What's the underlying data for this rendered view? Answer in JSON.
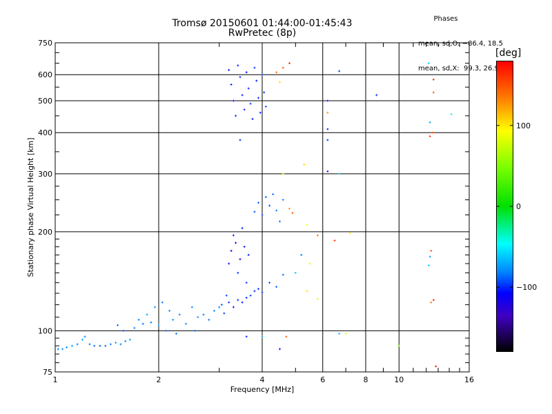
{
  "chart_data": {
    "type": "scatter",
    "title": "Tromsø 20150601 01:44:00-01:45:43",
    "subtitle": "RwPretec (8p)",
    "xlabel": "Frequency [MHz]",
    "ylabel": "Stationary phase Virtual Height [km]",
    "x_scale": "log",
    "y_scale": "log",
    "xlim": [
      1,
      16
    ],
    "ylim": [
      75,
      750
    ],
    "x_ticks": [
      1,
      2,
      4,
      6,
      8,
      10,
      16
    ],
    "x_tick_labels": [
      "1",
      "2",
      "4",
      "6",
      "8",
      "10",
      "16"
    ],
    "y_ticks": [
      75,
      100,
      200,
      300,
      400,
      500,
      600,
      750
    ],
    "y_tick_labels": [
      "75",
      "100",
      "200",
      "300",
      "400",
      "500",
      "600",
      "750"
    ],
    "grid": true,
    "colorbar": {
      "label": "[deg]",
      "ticks": [
        100,
        0,
        -100
      ],
      "tick_labels": [
        "100",
        "0",
        "−100"
      ],
      "range": [
        -180,
        180
      ]
    },
    "phases_header": "Phases",
    "stats_lines": [
      "mean, sd,O: −86.4, 18.5",
      "mean, sd,X:  99.3, 26.9"
    ],
    "points": [
      {
        "x": 1.02,
        "y": 88,
        "phase": -80
      },
      {
        "x": 1.05,
        "y": 88,
        "phase": -75
      },
      {
        "x": 1.08,
        "y": 89,
        "phase": -78
      },
      {
        "x": 1.12,
        "y": 90,
        "phase": -72
      },
      {
        "x": 1.16,
        "y": 91,
        "phase": -80
      },
      {
        "x": 1.2,
        "y": 94,
        "phase": -70
      },
      {
        "x": 1.22,
        "y": 96,
        "phase": -76
      },
      {
        "x": 1.26,
        "y": 91,
        "phase": -82
      },
      {
        "x": 1.3,
        "y": 90,
        "phase": -85
      },
      {
        "x": 1.35,
        "y": 90,
        "phase": -90
      },
      {
        "x": 1.4,
        "y": 90,
        "phase": -88
      },
      {
        "x": 1.45,
        "y": 91,
        "phase": -80
      },
      {
        "x": 1.5,
        "y": 92,
        "phase": -75
      },
      {
        "x": 1.55,
        "y": 91,
        "phase": -78
      },
      {
        "x": 1.6,
        "y": 93,
        "phase": -80
      },
      {
        "x": 1.52,
        "y": 104,
        "phase": -85
      },
      {
        "x": 1.58,
        "y": 100,
        "phase": -90
      },
      {
        "x": 1.65,
        "y": 94,
        "phase": -72
      },
      {
        "x": 1.7,
        "y": 102,
        "phase": -80
      },
      {
        "x": 1.75,
        "y": 108,
        "phase": -78
      },
      {
        "x": 1.8,
        "y": 105,
        "phase": -85
      },
      {
        "x": 1.85,
        "y": 112,
        "phase": -70
      },
      {
        "x": 1.9,
        "y": 106,
        "phase": -82
      },
      {
        "x": 1.95,
        "y": 118,
        "phase": -76
      },
      {
        "x": 2.0,
        "y": 104,
        "phase": -72
      },
      {
        "x": 2.05,
        "y": 122,
        "phase": -80
      },
      {
        "x": 2.1,
        "y": 100,
        "phase": -84
      },
      {
        "x": 2.15,
        "y": 115,
        "phase": -78
      },
      {
        "x": 2.2,
        "y": 108,
        "phase": -74
      },
      {
        "x": 2.25,
        "y": 98,
        "phase": -82
      },
      {
        "x": 2.3,
        "y": 112,
        "phase": -80
      },
      {
        "x": 2.4,
        "y": 105,
        "phase": -76
      },
      {
        "x": 2.5,
        "y": 118,
        "phase": -78
      },
      {
        "x": 2.55,
        "y": 100,
        "phase": -85
      },
      {
        "x": 2.6,
        "y": 110,
        "phase": -72
      },
      {
        "x": 2.7,
        "y": 112,
        "phase": -80
      },
      {
        "x": 2.8,
        "y": 108,
        "phase": -82
      },
      {
        "x": 2.9,
        "y": 115,
        "phase": -76
      },
      {
        "x": 3.0,
        "y": 118,
        "phase": -80
      },
      {
        "x": 3.05,
        "y": 120,
        "phase": -88
      },
      {
        "x": 3.1,
        "y": 113,
        "phase": -94
      },
      {
        "x": 3.15,
        "y": 128,
        "phase": -92
      },
      {
        "x": 3.2,
        "y": 122,
        "phase": -98
      },
      {
        "x": 3.3,
        "y": 118,
        "phase": -100
      },
      {
        "x": 3.4,
        "y": 124,
        "phase": -96
      },
      {
        "x": 3.5,
        "y": 122,
        "phase": -102
      },
      {
        "x": 3.6,
        "y": 126,
        "phase": -98
      },
      {
        "x": 3.7,
        "y": 128,
        "phase": -95
      },
      {
        "x": 3.8,
        "y": 132,
        "phase": -100
      },
      {
        "x": 3.9,
        "y": 134,
        "phase": -96
      },
      {
        "x": 4.0,
        "y": 131,
        "phase": -94
      },
      {
        "x": 4.2,
        "y": 140,
        "phase": -92
      },
      {
        "x": 4.4,
        "y": 136,
        "phase": -88
      },
      {
        "x": 4.6,
        "y": 148,
        "phase": -84
      },
      {
        "x": 3.2,
        "y": 160,
        "phase": -102
      },
      {
        "x": 3.25,
        "y": 175,
        "phase": -104
      },
      {
        "x": 3.3,
        "y": 195,
        "phase": -100
      },
      {
        "x": 3.35,
        "y": 185,
        "phase": -106
      },
      {
        "x": 3.4,
        "y": 150,
        "phase": -98
      },
      {
        "x": 3.45,
        "y": 165,
        "phase": -104
      },
      {
        "x": 3.5,
        "y": 205,
        "phase": -100
      },
      {
        "x": 3.55,
        "y": 180,
        "phase": -102
      },
      {
        "x": 3.6,
        "y": 140,
        "phase": -96
      },
      {
        "x": 3.65,
        "y": 170,
        "phase": -100
      },
      {
        "x": 3.8,
        "y": 230,
        "phase": -90
      },
      {
        "x": 3.9,
        "y": 245,
        "phase": -88
      },
      {
        "x": 4.0,
        "y": 225,
        "phase": -92
      },
      {
        "x": 4.1,
        "y": 255,
        "phase": -86
      },
      {
        "x": 4.2,
        "y": 240,
        "phase": -90
      },
      {
        "x": 4.3,
        "y": 260,
        "phase": -84
      },
      {
        "x": 4.4,
        "y": 232,
        "phase": -80
      },
      {
        "x": 4.5,
        "y": 215,
        "phase": -82
      },
      {
        "x": 4.6,
        "y": 250,
        "phase": -78
      },
      {
        "x": 4.8,
        "y": 235,
        "phase": 130
      },
      {
        "x": 4.9,
        "y": 228,
        "phase": 150
      },
      {
        "x": 3.2,
        "y": 620,
        "phase": -102
      },
      {
        "x": 3.25,
        "y": 560,
        "phase": -100
      },
      {
        "x": 3.3,
        "y": 500,
        "phase": -104
      },
      {
        "x": 3.35,
        "y": 450,
        "phase": -98
      },
      {
        "x": 3.4,
        "y": 640,
        "phase": -100
      },
      {
        "x": 3.45,
        "y": 590,
        "phase": -96
      },
      {
        "x": 3.5,
        "y": 520,
        "phase": -102
      },
      {
        "x": 3.55,
        "y": 470,
        "phase": -100
      },
      {
        "x": 3.6,
        "y": 610,
        "phase": -106
      },
      {
        "x": 3.65,
        "y": 545,
        "phase": -98
      },
      {
        "x": 3.7,
        "y": 490,
        "phase": -94
      },
      {
        "x": 3.75,
        "y": 440,
        "phase": -100
      },
      {
        "x": 3.8,
        "y": 630,
        "phase": -96
      },
      {
        "x": 3.85,
        "y": 575,
        "phase": -102
      },
      {
        "x": 3.9,
        "y": 510,
        "phase": -98
      },
      {
        "x": 3.95,
        "y": 460,
        "phase": -100
      },
      {
        "x": 4.0,
        "y": 600,
        "phase": -92
      },
      {
        "x": 4.05,
        "y": 530,
        "phase": -96
      },
      {
        "x": 4.1,
        "y": 480,
        "phase": -90
      },
      {
        "x": 3.45,
        "y": 380,
        "phase": -98
      },
      {
        "x": 4.4,
        "y": 610,
        "phase": 140
      },
      {
        "x": 4.6,
        "y": 630,
        "phase": 150
      },
      {
        "x": 4.8,
        "y": 650,
        "phase": 170
      },
      {
        "x": 4.5,
        "y": 570,
        "phase": 110
      },
      {
        "x": 6.2,
        "y": 500,
        "phase": -104
      },
      {
        "x": 6.2,
        "y": 460,
        "phase": 130
      },
      {
        "x": 6.2,
        "y": 410,
        "phase": -100
      },
      {
        "x": 6.2,
        "y": 380,
        "phase": -96
      },
      {
        "x": 6.2,
        "y": 305,
        "phase": -100
      },
      {
        "x": 6.7,
        "y": 615,
        "phase": -94
      },
      {
        "x": 6.7,
        "y": 300,
        "phase": -60
      },
      {
        "x": 8.6,
        "y": 520,
        "phase": -96
      },
      {
        "x": 12.2,
        "y": 650,
        "phase": -60
      },
      {
        "x": 12.6,
        "y": 580,
        "phase": 170
      },
      {
        "x": 12.6,
        "y": 530,
        "phase": 150
      },
      {
        "x": 12.3,
        "y": 430,
        "phase": -70
      },
      {
        "x": 12.3,
        "y": 390,
        "phase": 160
      },
      {
        "x": 12.5,
        "y": 400,
        "phase": 150
      },
      {
        "x": 14.2,
        "y": 455,
        "phase": -40
      },
      {
        "x": 5.3,
        "y": 320,
        "phase": 110
      },
      {
        "x": 4.6,
        "y": 300,
        "phase": 80
      },
      {
        "x": 5.4,
        "y": 210,
        "phase": 100
      },
      {
        "x": 5.8,
        "y": 195,
        "phase": 140
      },
      {
        "x": 6.5,
        "y": 188,
        "phase": 160
      },
      {
        "x": 7.2,
        "y": 198,
        "phase": 100
      },
      {
        "x": 5.2,
        "y": 170,
        "phase": -80
      },
      {
        "x": 5.5,
        "y": 160,
        "phase": 90
      },
      {
        "x": 5.0,
        "y": 150,
        "phase": -60
      },
      {
        "x": 5.4,
        "y": 132,
        "phase": 110
      },
      {
        "x": 5.8,
        "y": 125,
        "phase": 90
      },
      {
        "x": 12.4,
        "y": 175,
        "phase": 150
      },
      {
        "x": 12.3,
        "y": 168,
        "phase": -70
      },
      {
        "x": 12.2,
        "y": 158,
        "phase": -60
      },
      {
        "x": 12.4,
        "y": 122,
        "phase": 140
      },
      {
        "x": 12.6,
        "y": 124,
        "phase": 170
      },
      {
        "x": 6.7,
        "y": 98,
        "phase": -60
      },
      {
        "x": 7.0,
        "y": 98,
        "phase": 90
      },
      {
        "x": 4.7,
        "y": 96,
        "phase": 150
      },
      {
        "x": 4.0,
        "y": 96,
        "phase": -70
      },
      {
        "x": 3.6,
        "y": 96,
        "phase": -100
      },
      {
        "x": 4.5,
        "y": 88,
        "phase": -100
      },
      {
        "x": 10.0,
        "y": 90,
        "phase": 50
      },
      {
        "x": 12.8,
        "y": 78,
        "phase": 175
      }
    ]
  }
}
